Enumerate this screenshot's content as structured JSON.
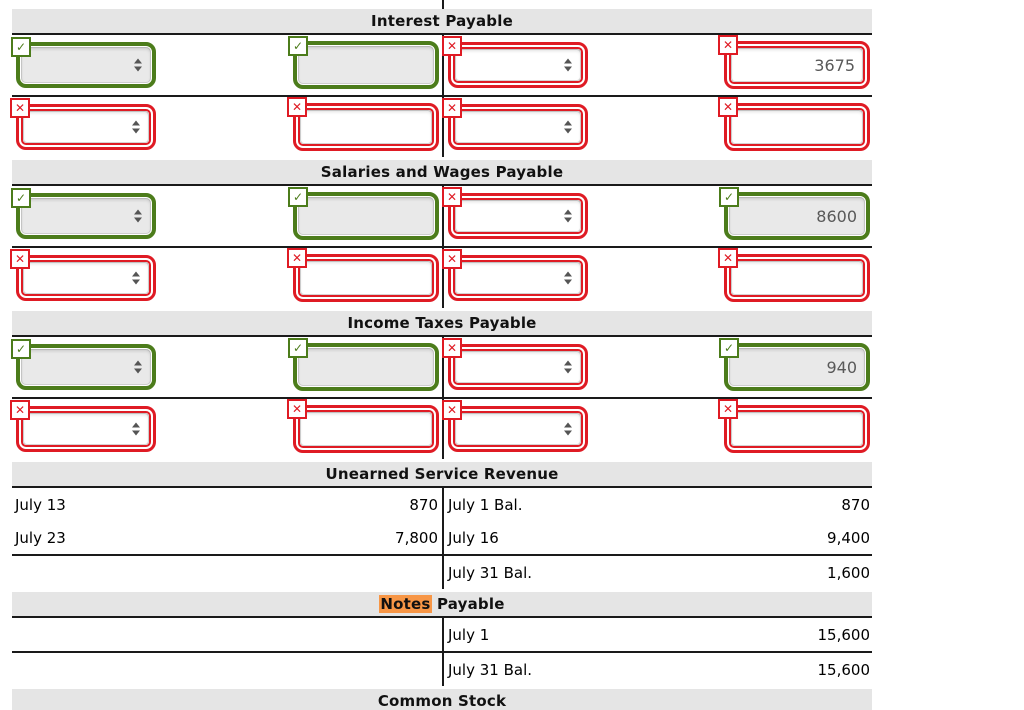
{
  "icons": {
    "correct": "✓",
    "incorrect": "✕"
  },
  "colors": {
    "correct_green": "#4c7c1b",
    "incorrect_red": "#df1b24",
    "band_background": "#e5e5e5",
    "field_background": "#e9e9e9",
    "highlight_orange": "#f79646",
    "rule_line": "#1a1a1a",
    "value_text": "#595959"
  },
  "sections": [
    {
      "id": "interest-payable",
      "type": "controls",
      "title": "Interest Payable",
      "rows": [
        {
          "cells": [
            {
              "kind": "select",
              "status": "correct",
              "value": ""
            },
            {
              "kind": "input",
              "status": "correct",
              "value": ""
            },
            {
              "kind": "select",
              "status": "incorrect",
              "value": ""
            },
            {
              "kind": "input",
              "status": "incorrect",
              "value": "3675"
            }
          ]
        },
        {
          "cells": [
            {
              "kind": "select",
              "status": "incorrect",
              "value": ""
            },
            {
              "kind": "input",
              "status": "incorrect",
              "value": ""
            },
            {
              "kind": "select",
              "status": "incorrect",
              "value": ""
            },
            {
              "kind": "input",
              "status": "incorrect",
              "value": ""
            }
          ]
        }
      ]
    },
    {
      "id": "salaries-and-wages-payable",
      "type": "controls",
      "title": "Salaries and Wages Payable",
      "rows": [
        {
          "cells": [
            {
              "kind": "select",
              "status": "correct",
              "value": ""
            },
            {
              "kind": "input",
              "status": "correct",
              "value": ""
            },
            {
              "kind": "select",
              "status": "incorrect",
              "value": ""
            },
            {
              "kind": "input",
              "status": "correct",
              "value": "8600"
            }
          ]
        },
        {
          "cells": [
            {
              "kind": "select",
              "status": "incorrect",
              "value": ""
            },
            {
              "kind": "input",
              "status": "incorrect",
              "value": ""
            },
            {
              "kind": "select",
              "status": "incorrect",
              "value": ""
            },
            {
              "kind": "input",
              "status": "incorrect",
              "value": ""
            }
          ]
        }
      ]
    },
    {
      "id": "income-taxes-payable",
      "type": "controls",
      "title": "Income Taxes Payable",
      "rows": [
        {
          "cells": [
            {
              "kind": "select",
              "status": "correct",
              "value": ""
            },
            {
              "kind": "input",
              "status": "correct",
              "value": ""
            },
            {
              "kind": "select",
              "status": "incorrect",
              "value": ""
            },
            {
              "kind": "input",
              "status": "correct",
              "value": "940"
            }
          ]
        },
        {
          "cells": [
            {
              "kind": "select",
              "status": "incorrect",
              "value": ""
            },
            {
              "kind": "input",
              "status": "incorrect",
              "value": ""
            },
            {
              "kind": "select",
              "status": "incorrect",
              "value": ""
            },
            {
              "kind": "input",
              "status": "incorrect",
              "value": ""
            }
          ]
        }
      ]
    },
    {
      "id": "unearned-service-revenue",
      "type": "ledger",
      "title": "Unearned Service Revenue",
      "rows": [
        {
          "left": {
            "label": "July 13",
            "amount": "870"
          },
          "right": {
            "label": "July 1 Bal.",
            "amount": "870"
          },
          "rule_after": false
        },
        {
          "left": {
            "label": "July 23",
            "amount": "7,800"
          },
          "right": {
            "label": "July 16",
            "amount": "9,400"
          },
          "rule_after": true
        },
        {
          "left": {
            "label": "",
            "amount": ""
          },
          "right": {
            "label": "July 31 Bal.",
            "amount": "1,600"
          },
          "rule_after": false
        }
      ]
    },
    {
      "id": "notes-payable",
      "type": "ledger",
      "title": "Notes Payable",
      "title_highlight": "Notes",
      "rows": [
        {
          "left": {
            "label": "",
            "amount": ""
          },
          "right": {
            "label": "July 1",
            "amount": "15,600"
          },
          "rule_after": true
        },
        {
          "left": {
            "label": "",
            "amount": ""
          },
          "right": {
            "label": "July 31 Bal.",
            "amount": "15,600"
          },
          "rule_after": false
        }
      ]
    },
    {
      "id": "common-stock",
      "type": "header-only",
      "title": "Common Stock",
      "rows": []
    }
  ]
}
